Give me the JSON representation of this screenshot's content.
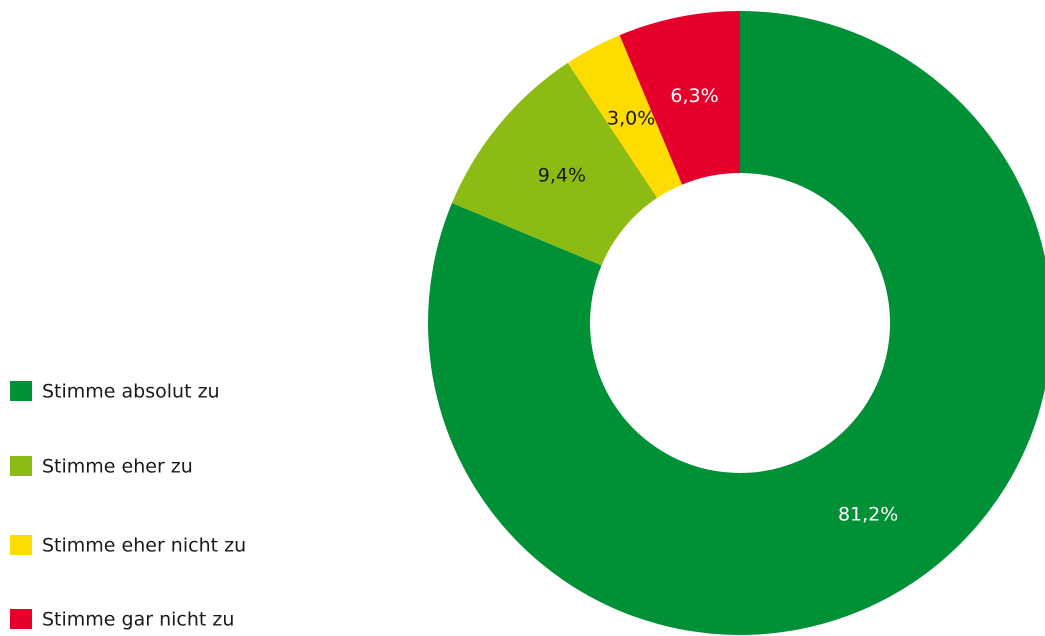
{
  "chart_data": {
    "type": "donut",
    "categories": [
      "Stimme absolut zu",
      "Stimme eher zu",
      "Stimme eher nicht zu",
      "Stimme gar nicht zu"
    ],
    "values": [
      81.2,
      9.4,
      3.0,
      6.3
    ],
    "value_labels": [
      "81,2%",
      "9,4%",
      "3,0%",
      "6,3%"
    ],
    "colors": [
      "#009036",
      "#8cbb13",
      "#ffdc00",
      "#e4002b"
    ],
    "legend": "left"
  }
}
